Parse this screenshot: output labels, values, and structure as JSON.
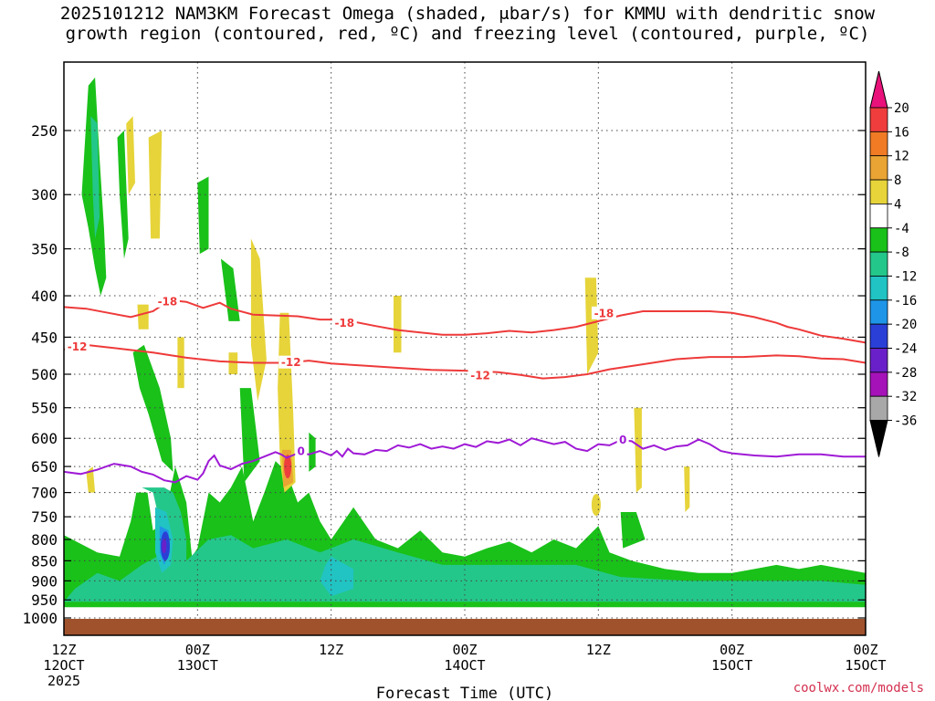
{
  "title_line1": "2025101212 NAM3KM Forecast Omega (shaded, μbar/s) for KMMU with dendritic snow",
  "title_line2": "growth region (contoured, red, ºC) and freezing level (contoured, purple, ºC)",
  "credit": "coolwx.com/models",
  "colors": {
    "dgz": "#ee3a3a",
    "freezing": "#9f1ad6",
    "ground": "#a0522d",
    "grid": "#444444"
  },
  "chart_data": {
    "type": "heatmap",
    "title": "2025101212 NAM3KM Forecast Omega (shaded, μbar/s) for KMMU with dendritic snow growth region (contoured, red, ºC) and freezing level (contoured, purple, ºC)",
    "xlabel": "Forecast Time (UTC)",
    "ylabel": "",
    "xlim": [
      0,
      72
    ],
    "ylim": [
      1020,
      200
    ],
    "y_scale": "log-pressure",
    "grid": true,
    "x_ticks": [
      {
        "hour": 0,
        "line1": "12Z",
        "line2": "12OCT",
        "line3": "2025"
      },
      {
        "hour": 12,
        "line1": "00Z",
        "line2": "13OCT",
        "line3": ""
      },
      {
        "hour": 24,
        "line1": "12Z",
        "line2": "",
        "line3": ""
      },
      {
        "hour": 36,
        "line1": "00Z",
        "line2": "14OCT",
        "line3": ""
      },
      {
        "hour": 48,
        "line1": "12Z",
        "line2": "",
        "line3": ""
      },
      {
        "hour": 60,
        "line1": "00Z",
        "line2": "15OCT",
        "line3": ""
      }
    ],
    "y_ticks": [
      250,
      300,
      350,
      400,
      450,
      500,
      550,
      600,
      650,
      700,
      750,
      800,
      850,
      900,
      950,
      1000
    ],
    "colorbar": {
      "labels": [
        "20",
        "16",
        "12",
        "8",
        "4",
        "-4",
        "-8",
        "-12",
        "-16",
        "-20",
        "-24",
        "-28",
        "-32",
        "-36"
      ],
      "bands": [
        {
          "from": 20,
          "to": 24,
          "color": "#e8127a"
        },
        {
          "from": 16,
          "to": 20,
          "color": "#ef3d3d"
        },
        {
          "from": 12,
          "to": 16,
          "color": "#f07b24"
        },
        {
          "from": 8,
          "to": 12,
          "color": "#e9a433"
        },
        {
          "from": 4,
          "to": 8,
          "color": "#e6d43a"
        },
        {
          "from": -4,
          "to": 4,
          "color": "#ffffff"
        },
        {
          "from": -8,
          "to": -4,
          "color": "#19c119"
        },
        {
          "from": -12,
          "to": -8,
          "color": "#24c78a"
        },
        {
          "from": -16,
          "to": -12,
          "color": "#21c3c3"
        },
        {
          "from": -20,
          "to": -16,
          "color": "#1f95e8"
        },
        {
          "from": -24,
          "to": -20,
          "color": "#2a3fd6"
        },
        {
          "from": -28,
          "to": -24,
          "color": "#6a20c8"
        },
        {
          "from": -32,
          "to": -28,
          "color": "#a412b8"
        },
        {
          "from": -36,
          "to": -32,
          "color": "#a8a8a8"
        },
        {
          "from": -40,
          "to": -36,
          "color": "#000000"
        }
      ]
    },
    "contours": [
      {
        "level": "-18",
        "color": "#ee3a3a",
        "points": [
          [
            0,
            413
          ],
          [
            2,
            415
          ],
          [
            4,
            420
          ],
          [
            6,
            425
          ],
          [
            8,
            418
          ],
          [
            9.5,
            405
          ],
          [
            11,
            407
          ],
          [
            12.5,
            414
          ],
          [
            14,
            408
          ],
          [
            15,
            415
          ],
          [
            17,
            422
          ],
          [
            19,
            423
          ],
          [
            21,
            424
          ],
          [
            23,
            428
          ],
          [
            25,
            428
          ],
          [
            28,
            436
          ],
          [
            30,
            441
          ],
          [
            32,
            444
          ],
          [
            34,
            447
          ],
          [
            36,
            447
          ],
          [
            38,
            445
          ],
          [
            40,
            442
          ],
          [
            42,
            444
          ],
          [
            44,
            441
          ],
          [
            46,
            437
          ],
          [
            48,
            430
          ],
          [
            50,
            423
          ],
          [
            52,
            418
          ],
          [
            54,
            418
          ],
          [
            56,
            418
          ],
          [
            58,
            418
          ],
          [
            60,
            420
          ],
          [
            62,
            425
          ],
          [
            64,
            432
          ],
          [
            65,
            437
          ],
          [
            66,
            440
          ],
          [
            68,
            448
          ],
          [
            70,
            452
          ],
          [
            72,
            457
          ]
        ],
        "labels": [
          {
            "x": 9.3,
            "p": 406
          },
          {
            "x": 25.2,
            "p": 432
          },
          {
            "x": 48.5,
            "p": 420
          }
        ]
      },
      {
        "level": "-12",
        "color": "#ee3a3a",
        "points": [
          [
            0,
            466
          ],
          [
            2,
            460
          ],
          [
            5,
            465
          ],
          [
            8,
            470
          ],
          [
            11,
            477
          ],
          [
            14,
            482
          ],
          [
            17,
            484
          ],
          [
            20,
            484
          ],
          [
            22,
            481
          ],
          [
            24,
            485
          ],
          [
            27,
            488
          ],
          [
            30,
            491
          ],
          [
            33,
            494
          ],
          [
            36,
            495
          ],
          [
            39,
            497
          ],
          [
            41,
            501
          ],
          [
            43,
            506
          ],
          [
            45,
            504
          ],
          [
            47,
            500
          ],
          [
            49,
            493
          ],
          [
            52,
            486
          ],
          [
            55,
            479
          ],
          [
            58,
            476
          ],
          [
            61,
            476
          ],
          [
            64,
            474
          ],
          [
            66,
            475
          ],
          [
            68,
            478
          ],
          [
            70,
            479
          ],
          [
            72,
            484
          ]
        ],
        "labels": [
          {
            "x": 1.2,
            "p": 462
          },
          {
            "x": 20.4,
            "p": 483
          },
          {
            "x": 37.4,
            "p": 501
          }
        ]
      },
      {
        "level": "0",
        "color": "#9f1ad6",
        "points": [
          [
            0,
            660
          ],
          [
            1.5,
            664
          ],
          [
            3,
            656
          ],
          [
            4.5,
            645
          ],
          [
            6,
            650
          ],
          [
            7,
            660
          ],
          [
            8,
            665
          ],
          [
            9,
            676
          ],
          [
            10,
            680
          ],
          [
            11,
            668
          ],
          [
            12,
            675
          ],
          [
            12.5,
            663
          ],
          [
            13,
            640
          ],
          [
            13.5,
            630
          ],
          [
            14,
            648
          ],
          [
            15,
            655
          ],
          [
            16,
            645
          ],
          [
            17,
            640
          ],
          [
            18,
            632
          ],
          [
            19,
            624
          ],
          [
            19.5,
            628
          ],
          [
            20,
            634
          ],
          [
            21,
            626
          ],
          [
            22,
            628
          ],
          [
            23,
            622
          ],
          [
            24,
            630
          ],
          [
            24.5,
            622
          ],
          [
            25,
            632
          ],
          [
            25.5,
            618
          ],
          [
            26,
            626
          ],
          [
            27,
            628
          ],
          [
            28,
            620
          ],
          [
            29,
            622
          ],
          [
            30,
            612
          ],
          [
            31,
            616
          ],
          [
            32,
            610
          ],
          [
            33,
            618
          ],
          [
            34,
            614
          ],
          [
            35,
            618
          ],
          [
            36,
            610
          ],
          [
            37,
            615
          ],
          [
            38,
            605
          ],
          [
            39,
            608
          ],
          [
            40,
            602
          ],
          [
            41,
            612
          ],
          [
            42,
            600
          ],
          [
            43,
            605
          ],
          [
            44,
            610
          ],
          [
            45,
            606
          ],
          [
            46,
            618
          ],
          [
            47,
            622
          ],
          [
            48,
            610
          ],
          [
            49,
            612
          ],
          [
            50,
            603
          ],
          [
            51,
            605
          ],
          [
            52,
            618
          ],
          [
            53,
            612
          ],
          [
            54,
            620
          ],
          [
            55,
            614
          ],
          [
            56,
            612
          ],
          [
            57,
            602
          ],
          [
            58,
            610
          ],
          [
            59,
            622
          ],
          [
            60,
            626
          ],
          [
            62,
            630
          ],
          [
            64,
            632
          ],
          [
            66,
            628
          ],
          [
            68,
            628
          ],
          [
            70,
            632
          ],
          [
            72,
            632
          ]
        ],
        "labels": [
          {
            "x": 21.3,
            "p": 622
          },
          {
            "x": 50.2,
            "p": 602
          }
        ]
      }
    ]
  }
}
